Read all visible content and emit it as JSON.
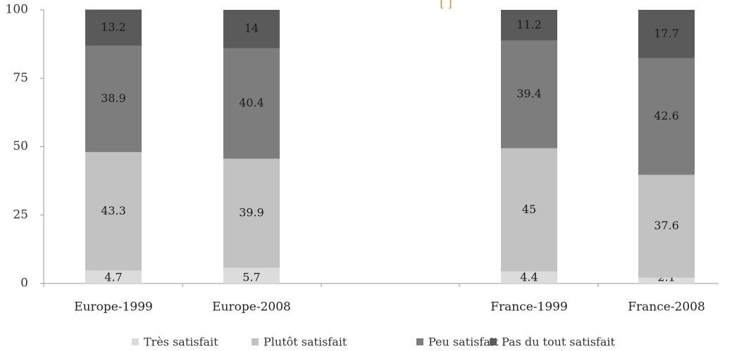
{
  "chart_data": {
    "type": "bar",
    "stacked": true,
    "title": "[ ]",
    "categories": [
      "Europe-1999",
      "Europe-2008",
      "France-1999",
      "France-2008"
    ],
    "series": [
      {
        "name": "Très satisfait",
        "values": [
          4.7,
          5.7,
          4.4,
          2.1
        ],
        "color": "#dcdcdc"
      },
      {
        "name": "Plutôt satisfait",
        "values": [
          43.3,
          39.9,
          45,
          37.6
        ],
        "color": "#c2c2c2"
      },
      {
        "name": "Peu satisfait",
        "values": [
          38.9,
          40.4,
          39.4,
          42.6
        ],
        "color": "#7d7d7d"
      },
      {
        "name": "Pas du tout satisfait",
        "values": [
          13.2,
          14,
          11.2,
          17.7
        ],
        "color": "#5a5a5a"
      }
    ],
    "data_labels": [
      [
        "4.7",
        "5.7",
        "4.4",
        "2.1"
      ],
      [
        "43.3",
        "39.9",
        "45",
        "37.6"
      ],
      [
        "38.9",
        "40.4",
        "39.4",
        "42.6"
      ],
      [
        "13.2",
        "14",
        "11.2",
        "17.7"
      ]
    ],
    "yticks": [
      "0",
      "25",
      "50",
      "75",
      "100"
    ],
    "ylim": [
      0,
      100
    ],
    "xlabel": "",
    "ylabel": "",
    "grid": false,
    "legend": "bottom"
  }
}
